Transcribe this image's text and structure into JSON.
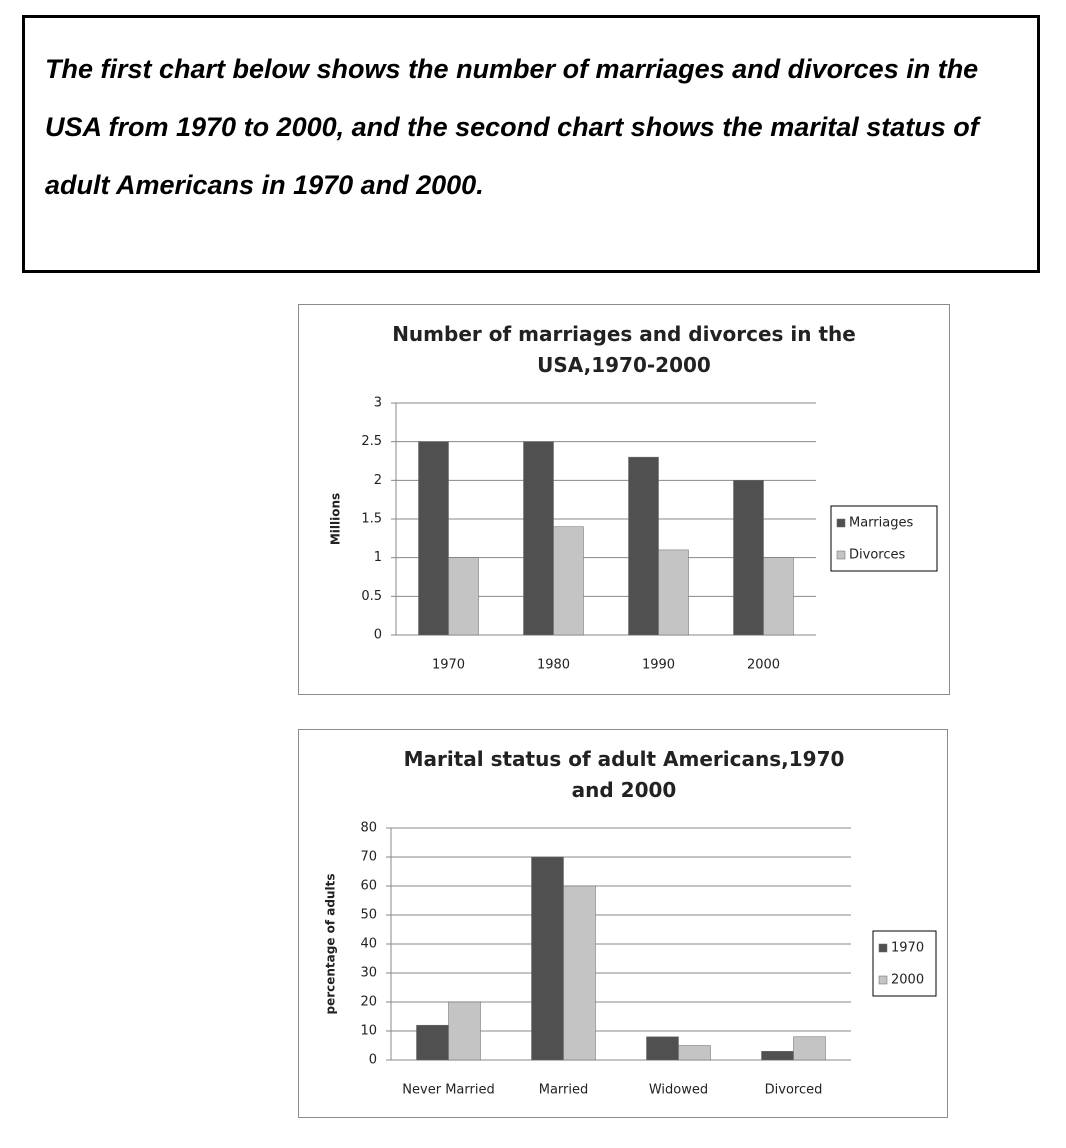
{
  "prompt": "The first chart below shows the number of marriages and divorces in the USA from 1970 to 2000, and the second chart shows the marital status of adult Americans in 1970 and 2000.",
  "chart_data": [
    {
      "type": "bar",
      "title": "Number of marriages and divorces in the USA,1970-2000",
      "y_label": "Millions",
      "categories": [
        "1970",
        "1980",
        "1990",
        "2000"
      ],
      "series": [
        {
          "name": "Marriages",
          "color": "#505050",
          "values": [
            2.5,
            2.5,
            2.3,
            2.0
          ]
        },
        {
          "name": "Divorces",
          "color": "#c4c4c4",
          "values": [
            1.0,
            1.4,
            1.1,
            1.0
          ]
        }
      ],
      "ylim": [
        0,
        3
      ],
      "yticks": [
        0,
        0.5,
        1,
        1.5,
        2,
        2.5,
        3
      ],
      "grid": true,
      "legend": "right"
    },
    {
      "type": "bar",
      "title": "Marital status of adult Americans,1970 and 2000",
      "y_label": "percentage of adults",
      "categories": [
        "Never Married",
        "Married",
        "Widowed",
        "Divorced"
      ],
      "series": [
        {
          "name": "1970",
          "color": "#505050",
          "values": [
            12,
            70,
            8,
            3
          ]
        },
        {
          "name": "2000",
          "color": "#c4c4c4",
          "values": [
            20,
            60,
            5,
            8
          ]
        }
      ],
      "ylim": [
        0,
        80
      ],
      "yticks": [
        0,
        10,
        20,
        30,
        40,
        50,
        60,
        70,
        80
      ],
      "grid": true,
      "legend": "right"
    }
  ]
}
